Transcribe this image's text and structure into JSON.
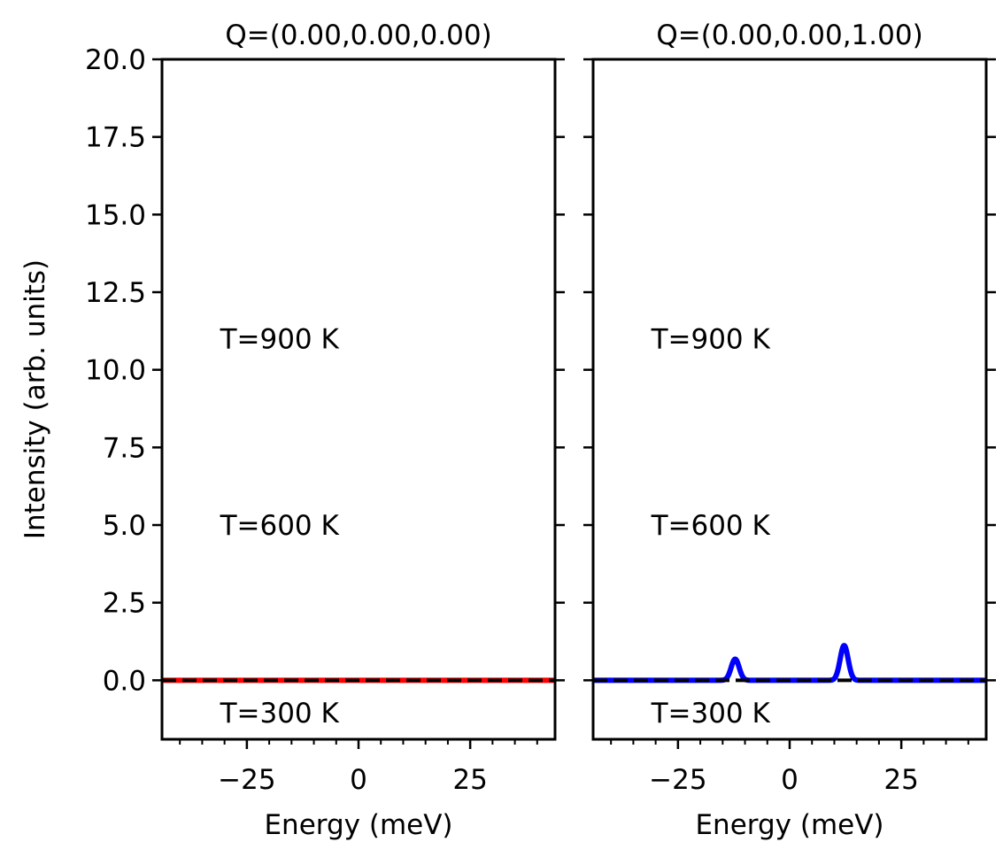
{
  "chart_data": [
    {
      "type": "line",
      "title": "Q=(0.00,0.00,0.00)",
      "xlabel": "Energy (meV)",
      "ylabel": "Intensity (arb. units)",
      "xlim": [
        -44,
        44
      ],
      "ylim": [
        -1.9,
        20.0
      ],
      "xticks": [
        -25,
        0,
        25
      ],
      "xtick_labels": [
        "−25",
        "0",
        "25"
      ],
      "yticks": [
        0.0,
        2.5,
        5.0,
        7.5,
        10.0,
        12.5,
        15.0,
        17.5,
        20.0
      ],
      "ytick_labels": [
        "0.0",
        "2.5",
        "5.0",
        "7.5",
        "10.0",
        "12.5",
        "15.0",
        "17.5",
        "20.0"
      ],
      "grid": false,
      "annotations": [
        {
          "text": "T=900 K",
          "x": -31,
          "y": 11.0
        },
        {
          "text": "T=600 K",
          "x": -31,
          "y": 5.0
        },
        {
          "text": "T=300 K",
          "x": -31,
          "y": -1.05
        }
      ],
      "series": [
        {
          "color": "#ff0000",
          "style": "solid",
          "x": [
            -44,
            44
          ],
          "y": [
            0.0,
            0.0
          ]
        },
        {
          "color": "#000000",
          "style": "dashed",
          "x": [
            -44,
            44
          ],
          "y": [
            0.0,
            0.0
          ]
        }
      ]
    },
    {
      "type": "line",
      "title": "Q=(0.00,0.00,1.00)",
      "xlabel": "Energy (meV)",
      "ylabel": "",
      "xlim": [
        -44,
        44
      ],
      "ylim": [
        -1.9,
        20.0
      ],
      "xticks": [
        -25,
        0,
        25
      ],
      "xtick_labels": [
        "−25",
        "0",
        "25"
      ],
      "yticks": [
        0.0,
        2.5,
        5.0,
        7.5,
        10.0,
        12.5,
        15.0,
        17.5,
        20.0
      ],
      "ytick_labels": [],
      "grid": false,
      "annotations": [
        {
          "text": "T=900 K",
          "x": -31,
          "y": 11.0
        },
        {
          "text": "T=600 K",
          "x": -31,
          "y": 5.0
        },
        {
          "text": "T=300 K",
          "x": -31,
          "y": -1.05
        }
      ],
      "series": [
        {
          "color": "#0000ff",
          "style": "solid",
          "peaks": [
            {
              "center": -12.2,
              "height": 0.68,
              "width": 0.9
            },
            {
              "center": 12.2,
              "height": 1.12,
              "width": 0.9
            }
          ]
        },
        {
          "color": "#000000",
          "style": "dashed",
          "x": [
            -44,
            44
          ],
          "y": [
            0.0,
            0.0
          ]
        }
      ]
    }
  ]
}
